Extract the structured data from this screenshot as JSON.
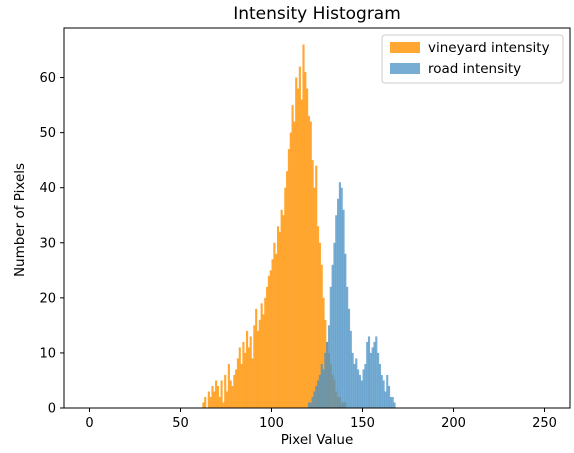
{
  "chart_data": {
    "type": "bar",
    "title": "Intensity Histogram",
    "xlabel": "Pixel Value",
    "ylabel": "Number of Pixels",
    "xlim": [
      -14,
      264
    ],
    "ylim": [
      0,
      69
    ],
    "xticks": [
      0,
      50,
      100,
      150,
      200,
      250
    ],
    "yticks": [
      0,
      10,
      20,
      30,
      40,
      50,
      60
    ],
    "grid": false,
    "legend_position": "top-right",
    "bin_width": 1,
    "series": [
      {
        "name": "vineyard intensity",
        "color": "#ff9d1c",
        "opacity": 0.9,
        "x": [
          62,
          63,
          64,
          65,
          66,
          67,
          68,
          69,
          70,
          71,
          72,
          73,
          74,
          75,
          76,
          77,
          78,
          79,
          80,
          81,
          82,
          83,
          84,
          85,
          86,
          87,
          88,
          89,
          90,
          91,
          92,
          93,
          94,
          95,
          96,
          97,
          98,
          99,
          100,
          101,
          102,
          103,
          104,
          105,
          106,
          107,
          108,
          109,
          110,
          111,
          112,
          113,
          114,
          115,
          116,
          117,
          118,
          119,
          120,
          121,
          122,
          123,
          124,
          125,
          126,
          127,
          128,
          129,
          130,
          131,
          132,
          133,
          134,
          135,
          136,
          137,
          138,
          139,
          140
        ],
        "values": [
          1,
          2,
          0,
          3,
          2,
          4,
          3,
          5,
          4,
          2,
          5,
          1,
          6,
          3,
          8,
          5,
          4,
          6,
          7,
          9,
          11,
          8,
          12,
          10,
          14,
          11,
          13,
          9,
          15,
          18,
          14,
          16,
          19,
          17,
          20,
          22,
          24,
          25,
          27,
          30,
          28,
          33,
          32,
          36,
          35,
          40,
          43,
          47,
          50,
          55,
          52,
          60,
          58,
          62,
          56,
          66,
          61,
          58,
          53,
          52,
          45,
          40,
          44,
          33,
          30,
          26,
          20,
          16,
          12,
          10,
          8,
          6,
          5,
          3,
          2,
          2,
          1,
          1,
          1
        ]
      },
      {
        "name": "road intensity",
        "color": "#4a90c4",
        "opacity": 0.75,
        "x": [
          120,
          121,
          122,
          123,
          124,
          125,
          126,
          127,
          128,
          129,
          130,
          131,
          132,
          133,
          134,
          135,
          136,
          137,
          138,
          139,
          140,
          141,
          142,
          143,
          144,
          145,
          146,
          147,
          148,
          149,
          150,
          151,
          152,
          153,
          154,
          155,
          156,
          157,
          158,
          159,
          160,
          161,
          162,
          163,
          164,
          165,
          166,
          167
        ],
        "values": [
          1,
          1,
          2,
          3,
          4,
          5,
          6,
          8,
          7,
          10,
          12,
          15,
          22,
          26,
          30,
          35,
          38,
          41,
          40,
          36,
          28,
          22,
          18,
          14,
          10,
          8,
          9,
          7,
          6,
          5,
          7,
          8,
          12,
          13,
          10,
          11,
          12,
          13,
          10,
          8,
          6,
          5,
          3,
          6,
          4,
          2,
          2,
          1
        ]
      }
    ]
  }
}
